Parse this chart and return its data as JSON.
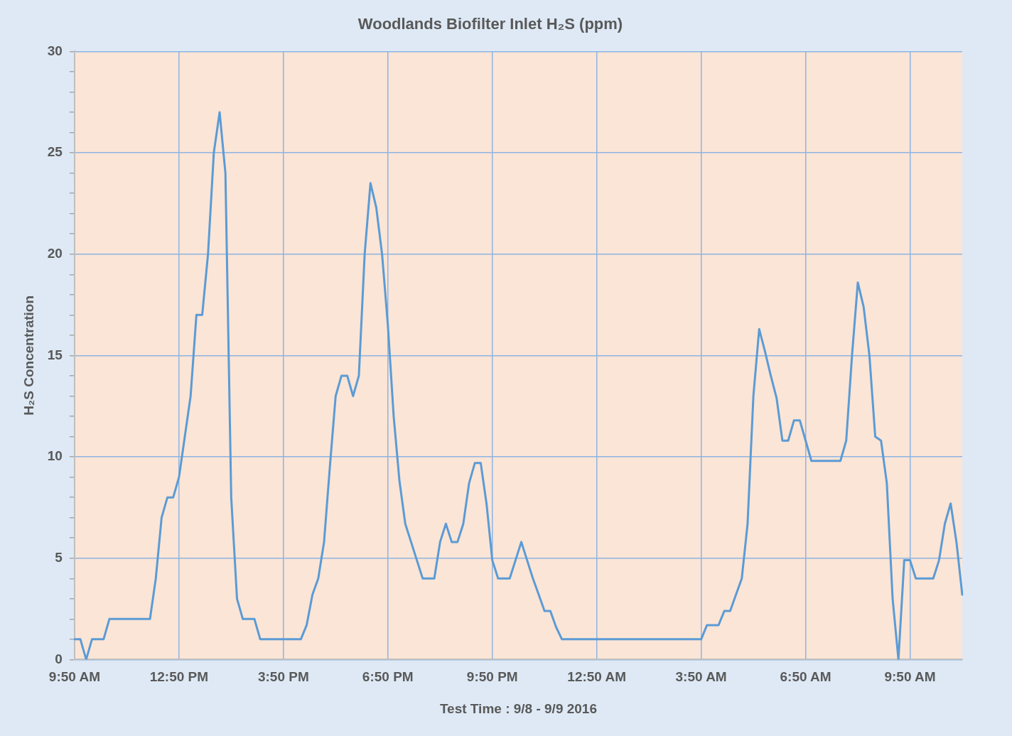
{
  "chart_data": {
    "type": "line",
    "title": "Woodlands Biofilter Inlet H₂S (ppm)",
    "xlabel": "Test Time : 9/8 - 9/9 2016",
    "ylabel": "H₂S Concentration",
    "categories": [
      "9:50 AM",
      null,
      null,
      null,
      null,
      null,
      null,
      null,
      null,
      null,
      null,
      null,
      null,
      null,
      null,
      null,
      null,
      null,
      "12:50 PM",
      null,
      null,
      null,
      null,
      null,
      null,
      null,
      null,
      null,
      null,
      null,
      null,
      null,
      null,
      null,
      null,
      null,
      "3:50 PM",
      null,
      null,
      null,
      null,
      null,
      null,
      null,
      null,
      null,
      null,
      null,
      null,
      null,
      null,
      null,
      null,
      null,
      "6:50 PM",
      null,
      null,
      null,
      null,
      null,
      null,
      null,
      null,
      null,
      null,
      null,
      null,
      null,
      null,
      null,
      null,
      null,
      "9:50 PM",
      null,
      null,
      null,
      null,
      null,
      null,
      null,
      null,
      null,
      null,
      null,
      null,
      null,
      null,
      null,
      null,
      null,
      "12:50 AM",
      null,
      null,
      null,
      null,
      null,
      null,
      null,
      null,
      null,
      null,
      null,
      null,
      null,
      null,
      null,
      null,
      null,
      "3:50 AM",
      null,
      null,
      null,
      null,
      null,
      null,
      null,
      null,
      null,
      null,
      null,
      null,
      null,
      null,
      null,
      null,
      null,
      "6:50 AM",
      null,
      null,
      null,
      null,
      null,
      null,
      null,
      null,
      null,
      null,
      null,
      null,
      null,
      null,
      null,
      null,
      null,
      "9:50 AM",
      null,
      null,
      null,
      null,
      null,
      null,
      null,
      null,
      null
    ],
    "series": [
      {
        "color": "#5b9bd5",
        "values": [
          1,
          1,
          0,
          1,
          1,
          1,
          2,
          2,
          2,
          2,
          2,
          2,
          2,
          2,
          4,
          7,
          8,
          8,
          9,
          11,
          13,
          17,
          17,
          20,
          25,
          27,
          24,
          8,
          3,
          2,
          2,
          2,
          1,
          1,
          1,
          1,
          1,
          1,
          1,
          1,
          1.7,
          3.2,
          4,
          5.8,
          9.5,
          13,
          14,
          14,
          13,
          14,
          20,
          23.5,
          22.3,
          20,
          16.5,
          12,
          8.8,
          6.7,
          5.8,
          4.9,
          4,
          4,
          4,
          5.8,
          6.7,
          5.8,
          5.8,
          6.7,
          8.7,
          9.7,
          9.7,
          7.7,
          4.9,
          4,
          4,
          4,
          4.9,
          5.8,
          4.9,
          4,
          3.2,
          2.4,
          2.4,
          1.6,
          1,
          1,
          1,
          1,
          1,
          1,
          1,
          1,
          1,
          1,
          1,
          1,
          1,
          1,
          1,
          1,
          1,
          1,
          1,
          1,
          1,
          1,
          1,
          1,
          1,
          1.7,
          1.7,
          1.7,
          2.4,
          2.4,
          3.2,
          4,
          6.7,
          13,
          16.3,
          15.2,
          14,
          12.9,
          10.8,
          10.8,
          11.8,
          11.8,
          10.8,
          9.8,
          9.8,
          9.8,
          9.8,
          9.8,
          9.8,
          10.8,
          15,
          18.6,
          17.4,
          15,
          11,
          10.8,
          8.7,
          3,
          0,
          4.9,
          4.9,
          4,
          4,
          4,
          4,
          4.9,
          6.7,
          7.7,
          5.8,
          3.2
        ]
      }
    ],
    "ylim": [
      0,
      30
    ],
    "yticks": [
      0,
      {
        "value": 1,
        "label": null
      },
      {
        "value": 2,
        "label": null
      },
      {
        "value": 3,
        "label": null
      },
      {
        "value": 4,
        "label": null
      },
      5,
      {
        "value": 6,
        "label": null
      },
      {
        "value": 7,
        "label": null
      },
      {
        "value": 8,
        "label": null
      },
      {
        "value": 9,
        "label": null
      },
      10,
      {
        "value": 11,
        "label": null
      },
      {
        "value": 12,
        "label": null
      },
      {
        "value": 13,
        "label": null
      },
      {
        "value": 14,
        "label": null
      },
      15,
      {
        "value": 16,
        "label": null
      },
      {
        "value": 17,
        "label": null
      },
      {
        "value": 18,
        "label": null
      },
      {
        "value": 19,
        "label": null
      },
      20,
      {
        "value": 21,
        "label": null
      },
      {
        "value": 22,
        "label": null
      },
      {
        "value": 23,
        "label": null
      },
      {
        "value": 24,
        "label": null
      },
      25,
      {
        "value": 26,
        "label": null
      },
      {
        "value": 27,
        "label": null
      },
      {
        "value": 28,
        "label": null
      },
      {
        "value": 29,
        "label": null
      },
      30
    ],
    "grid": true,
    "legend": false,
    "marker": "none",
    "line_style": "solid"
  }
}
